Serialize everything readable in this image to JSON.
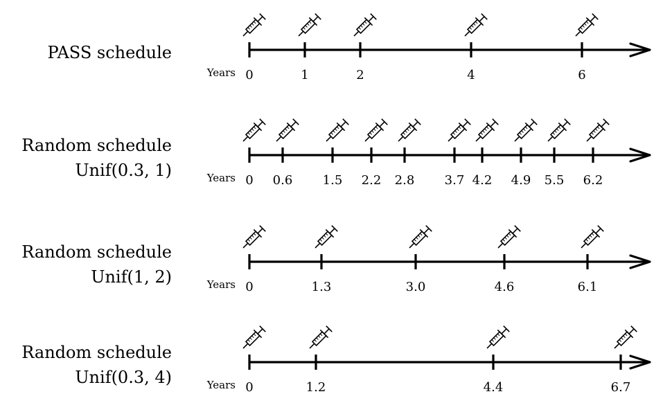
{
  "diagram": {
    "type": "timeline-schedules",
    "axis_unit_label": "Years",
    "schedules": [
      {
        "label_lines": [
          "PASS schedule"
        ],
        "times": [
          0,
          1,
          2,
          4,
          6
        ],
        "tick_labels": [
          "0",
          "1",
          "2",
          "4",
          "6"
        ]
      },
      {
        "label_lines": [
          "Random schedule",
          "Unif(0.3, 1)"
        ],
        "times": [
          0,
          0.6,
          1.5,
          2.2,
          2.8,
          3.7,
          4.2,
          4.9,
          5.5,
          6.2
        ],
        "tick_labels": [
          "0",
          "0.6",
          "1.5",
          "2.2",
          "2.8",
          "3.7",
          "4.2",
          "4.9",
          "5.5",
          "6.2"
        ]
      },
      {
        "label_lines": [
          "Random schedule",
          "Unif(1, 2)"
        ],
        "times": [
          0,
          1.3,
          3.0,
          4.6,
          6.1
        ],
        "tick_labels": [
          "0",
          "1.3",
          "3.0",
          "4.6",
          "6.1"
        ]
      },
      {
        "label_lines": [
          "Random schedule",
          "Unif(0.3, 4)"
        ],
        "times": [
          0,
          1.2,
          4.4,
          6.7
        ],
        "tick_labels": [
          "0",
          "1.2",
          "4.4",
          "6.7"
        ]
      }
    ],
    "marker_icon": "syringe-icon",
    "colors": {
      "line": "#000000",
      "background": "#ffffff"
    }
  }
}
